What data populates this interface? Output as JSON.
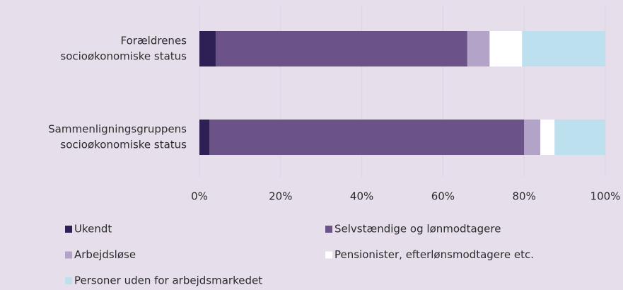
{
  "chart_data": {
    "type": "stacked-barh",
    "categories": [
      [
        "Forældrenes",
        "socioøkonomiske status"
      ],
      [
        "Sammenligningsgruppens",
        "socioøkonomiske status"
      ]
    ],
    "series": [
      {
        "name": "Ukendt",
        "color": "#2e1f55",
        "values": [
          4,
          2.5
        ]
      },
      {
        "name": "Selvstændige og lønmodtagere",
        "color": "#6b5287",
        "values": [
          62,
          77.5
        ]
      },
      {
        "name": "Arbejdsløse",
        "color": "#b3a3c8",
        "values": [
          5.5,
          4
        ]
      },
      {
        "name": "Pensionister, efterlønsmodtagere etc.",
        "color": "#ffffff",
        "values": [
          8,
          3.5
        ]
      },
      {
        "name": "Personer uden for arbejdsmarkedet",
        "color": "#bde0ee",
        "values": [
          20.5,
          12.5
        ]
      }
    ],
    "xlim": [
      0,
      100
    ],
    "xticks": [
      {
        "value": 0,
        "label": "0%"
      },
      {
        "value": 20,
        "label": "20%"
      },
      {
        "value": 40,
        "label": "40%"
      },
      {
        "value": 60,
        "label": "60%"
      },
      {
        "value": 80,
        "label": "80%"
      },
      {
        "value": 100,
        "label": "100%"
      }
    ],
    "grid": true
  }
}
